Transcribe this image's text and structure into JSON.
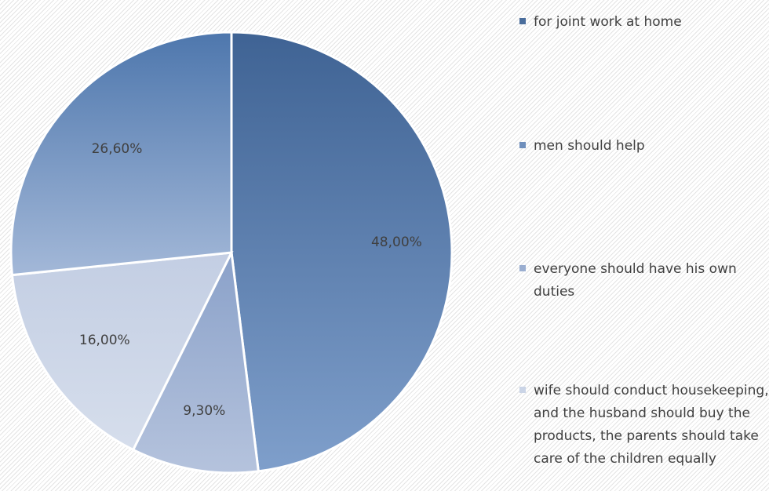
{
  "chart_data": {
    "type": "pie",
    "legend_position": "right",
    "slices": [
      {
        "label": "for joint work at home",
        "value": 48.0,
        "display": "48,00%",
        "color": "#5a7fae"
      },
      {
        "label": "everyone should have his own duties",
        "value": 9.3,
        "display": "9,30%",
        "color": "#9eb1d0"
      },
      {
        "label": "wife should conduct housekeeping, and the husband should buy the products, the parents should take care of the children equally",
        "value": 16.0,
        "display": "16,00%",
        "color": "#cdd6e6"
      },
      {
        "label": "men should help",
        "value": 26.6,
        "display": "26,60%",
        "color": "#7d99c4"
      }
    ],
    "legend": [
      {
        "text": "for joint work at home",
        "color": "#4a6d9c"
      },
      {
        "text": "men should help",
        "color": "#6f8fbc"
      },
      {
        "text": "everyone should have his own duties",
        "color": "#9aaed0"
      },
      {
        "text": "wife should conduct housekeeping, and the husband should buy the products, the parents should take care of the children equally",
        "color": "#cad4e6"
      }
    ]
  }
}
